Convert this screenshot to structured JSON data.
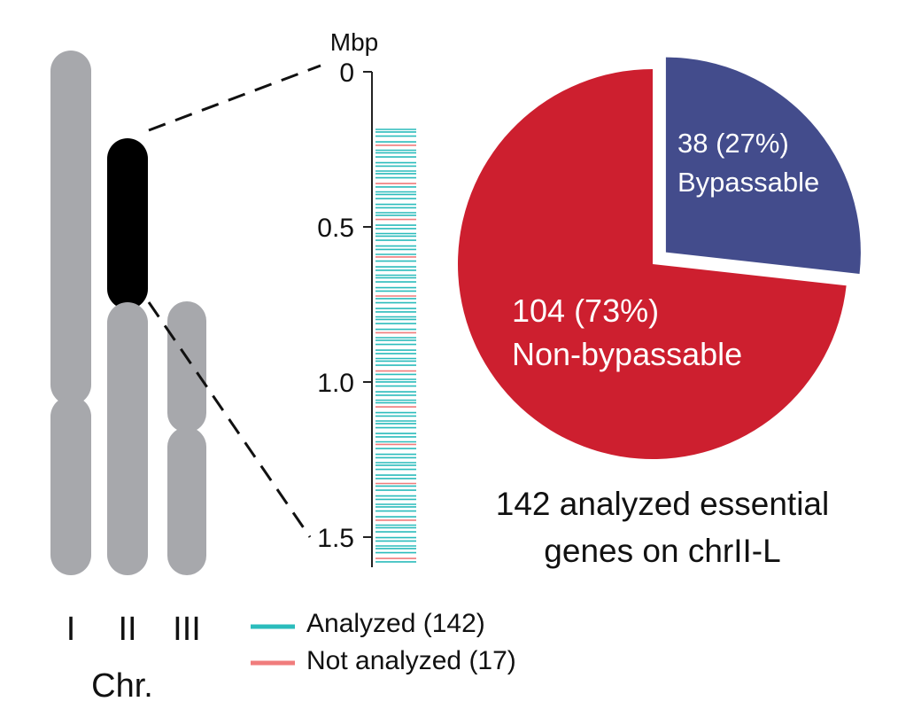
{
  "chromosomes": {
    "labels": [
      "I",
      "II",
      "III"
    ],
    "caption": "Chr.",
    "highlighted": "chrII-L"
  },
  "axis": {
    "unit": "Mbp",
    "ticks": [
      {
        "value": 0,
        "label": "0"
      },
      {
        "value": 0.5,
        "label": "0.5"
      },
      {
        "value": 1.0,
        "label": "1.0"
      },
      {
        "value": 1.5,
        "label": "1.5"
      }
    ],
    "range": [
      0,
      1.5
    ]
  },
  "legend": {
    "analyzed": {
      "label": "Analyzed (142)",
      "color": "#2bbcbc"
    },
    "not_analyzed": {
      "label": "Not analyzed (17)",
      "color": "#f07c7c"
    }
  },
  "chart_data": {
    "type": "pie",
    "slices": [
      {
        "name": "Bypassable",
        "count_label": "38 (27%)",
        "value": 38,
        "percent": 27,
        "color": "#434c8c",
        "exploded": true
      },
      {
        "name": "Non-bypassable",
        "count_label": "104 (73%)",
        "value": 104,
        "percent": 73,
        "color": "#cd1f2f",
        "exploded": false
      }
    ],
    "caption_line1": "142 analyzed essential",
    "caption_line2": "genes on chrII-L"
  },
  "colors": {
    "chromosome": "#a7a8ac",
    "highlight": "#000000",
    "text": "#111111"
  }
}
